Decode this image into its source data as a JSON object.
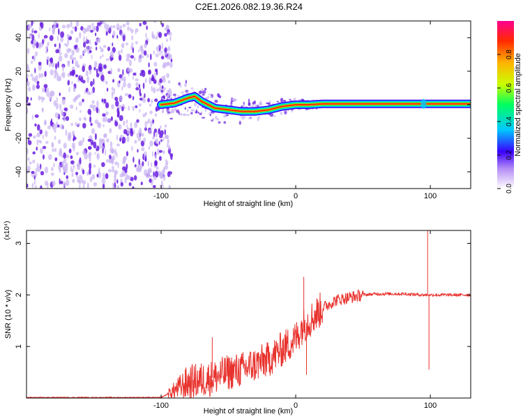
{
  "title": "C2E1.2026.082.19.36.R24",
  "colors": {
    "signal": "#e8322d",
    "speckle": "#6a1fe0",
    "speckle_light": "#c9b4f2",
    "frame": "#000000"
  },
  "chart_data": [
    {
      "type": "heatmap",
      "name": "spectrogram",
      "xlabel": "Height of straight line (km)",
      "ylabel": "Frequency (Hz)",
      "xlim": [
        -200,
        130
      ],
      "ylim": [
        -50,
        50
      ],
      "xticks": [
        -100,
        0,
        100
      ],
      "yticks": [
        -40,
        -20,
        0,
        20,
        40
      ],
      "ridge": [
        [
          -100,
          0
        ],
        [
          -90,
          1
        ],
        [
          -80,
          4
        ],
        [
          -75,
          5
        ],
        [
          -70,
          2
        ],
        [
          -60,
          -2
        ],
        [
          -50,
          -3
        ],
        [
          -40,
          -4
        ],
        [
          -30,
          -4
        ],
        [
          -20,
          -3
        ],
        [
          -10,
          -1
        ],
        [
          0,
          0
        ],
        [
          10,
          0
        ],
        [
          20,
          0.5
        ],
        [
          130,
          0.5
        ]
      ],
      "noise_region": [
        -200,
        -100
      ],
      "colorbar": {
        "label": "Normalized spectral amplitude",
        "ticks": [
          0.0,
          0.2,
          0.4,
          0.6,
          0.8
        ],
        "range": [
          0,
          1
        ]
      }
    },
    {
      "type": "line",
      "name": "snr",
      "xlabel": "Height of straight line (km)",
      "ylabel": "SNR (10 * v/v)",
      "scale_label": "(x10⁴)",
      "xlim": [
        -200,
        130
      ],
      "ylim": [
        0,
        3.25
      ],
      "xticks": [
        -100,
        0,
        100
      ],
      "yticks": [
        1,
        2,
        3
      ],
      "series": [
        {
          "name": "SNR",
          "x": [
            -200,
            -100,
            -90,
            -80,
            -70,
            -60,
            -50,
            -40,
            -30,
            -20,
            -10,
            0,
            5,
            10,
            20,
            30,
            40,
            50,
            60,
            80,
            95,
            100,
            110,
            130
          ],
          "y": [
            0.01,
            0.01,
            0.15,
            0.3,
            0.35,
            0.4,
            0.5,
            0.55,
            0.65,
            0.75,
            0.95,
            1.15,
            1.4,
            1.5,
            1.75,
            1.9,
            1.95,
            2.0,
            2.02,
            2.02,
            2.0,
            2.0,
            2.0,
            2.0
          ]
        }
      ],
      "spikes": [
        {
          "x": -62,
          "y": 1.18
        },
        {
          "x": 6,
          "y": 2.35
        },
        {
          "x": 8,
          "y": 0.45
        },
        {
          "x": 98,
          "y": 3.25
        },
        {
          "x": 99,
          "y": 0.55
        }
      ]
    }
  ]
}
